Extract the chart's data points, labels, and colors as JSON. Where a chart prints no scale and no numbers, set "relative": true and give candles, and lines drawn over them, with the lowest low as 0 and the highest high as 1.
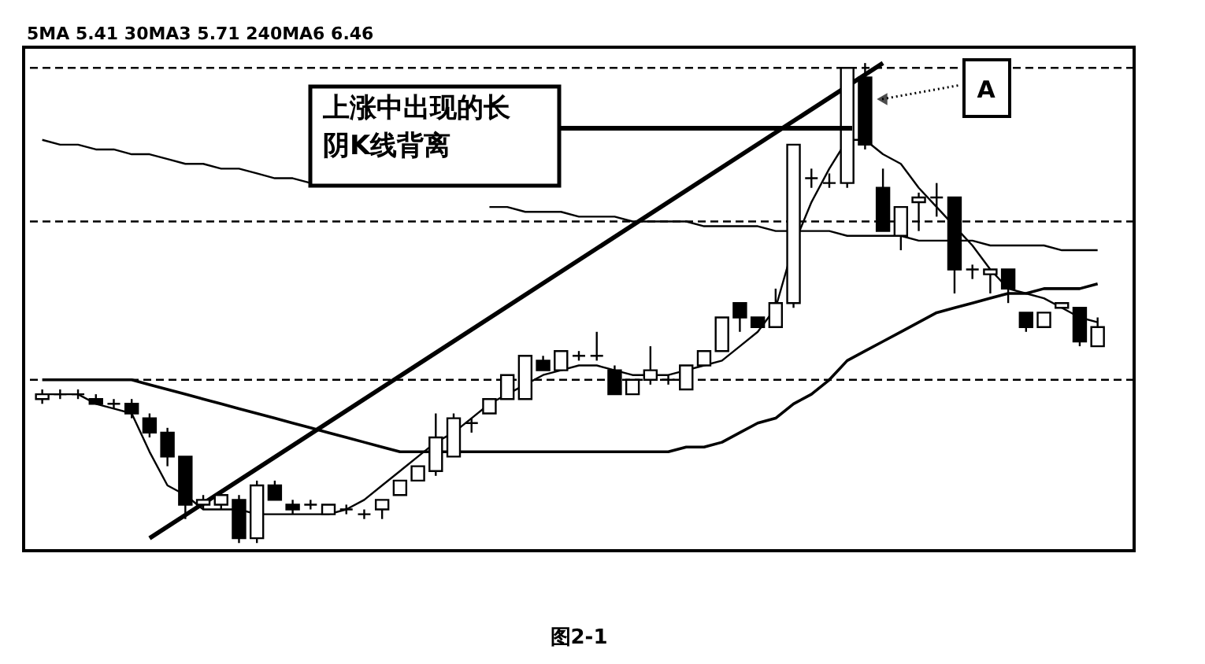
{
  "chart_data": {
    "type": "candlestick",
    "relative": true,
    "title": "图2-1",
    "categories": [
      null,
      null,
      null,
      null,
      null,
      null,
      null,
      null,
      null,
      null,
      null,
      null,
      null,
      null,
      null,
      null,
      null,
      null,
      null,
      null,
      null,
      null,
      null,
      null,
      null,
      null,
      null,
      null,
      null,
      null,
      null,
      null,
      null,
      null,
      null,
      null,
      null,
      null,
      null,
      null,
      null,
      null,
      null,
      null,
      null,
      null,
      null,
      null,
      null,
      null,
      null,
      null,
      null,
      null,
      null,
      null,
      null,
      null,
      null,
      null
    ],
    "ohlc": [
      [
        0.3,
        0.32,
        0.29,
        0.31
      ],
      [
        0.31,
        0.32,
        0.3,
        0.31
      ],
      [
        0.31,
        0.32,
        0.3,
        0.31
      ],
      [
        0.3,
        0.31,
        0.29,
        0.29
      ],
      [
        0.29,
        0.3,
        0.28,
        0.29
      ],
      [
        0.29,
        0.3,
        0.26,
        0.27
      ],
      [
        0.26,
        0.27,
        0.22,
        0.23
      ],
      [
        0.23,
        0.24,
        0.16,
        0.18
      ],
      [
        0.18,
        0.18,
        0.05,
        0.08
      ],
      [
        0.08,
        0.1,
        0.07,
        0.09
      ],
      [
        0.08,
        0.11,
        0.07,
        0.1
      ],
      [
        0.09,
        0.1,
        0.0,
        0.01
      ],
      [
        0.01,
        0.13,
        0.0,
        0.12
      ],
      [
        0.12,
        0.13,
        0.09,
        0.09
      ],
      [
        0.08,
        0.09,
        0.06,
        0.07
      ],
      [
        0.08,
        0.09,
        0.07,
        0.08
      ],
      [
        0.06,
        0.08,
        0.06,
        0.08
      ],
      [
        0.07,
        0.08,
        0.06,
        0.07
      ],
      [
        0.06,
        0.07,
        0.05,
        0.06
      ],
      [
        0.07,
        0.09,
        0.05,
        0.09
      ],
      [
        0.1,
        0.13,
        0.1,
        0.13
      ],
      [
        0.13,
        0.16,
        0.13,
        0.16
      ],
      [
        0.15,
        0.27,
        0.14,
        0.22
      ],
      [
        0.18,
        0.27,
        0.18,
        0.26
      ],
      [
        0.25,
        0.26,
        0.23,
        0.25
      ],
      [
        0.27,
        0.3,
        0.27,
        0.3
      ],
      [
        0.3,
        0.35,
        0.3,
        0.35
      ],
      [
        0.3,
        0.39,
        0.3,
        0.39
      ],
      [
        0.38,
        0.39,
        0.36,
        0.36
      ],
      [
        0.36,
        0.4,
        0.36,
        0.4
      ],
      [
        0.39,
        0.4,
        0.38,
        0.39
      ],
      [
        0.39,
        0.44,
        0.38,
        0.39
      ],
      [
        0.36,
        0.37,
        0.31,
        0.31
      ],
      [
        0.31,
        0.34,
        0.31,
        0.34
      ],
      [
        0.34,
        0.41,
        0.33,
        0.36
      ],
      [
        0.34,
        0.35,
        0.33,
        0.34
      ],
      [
        0.32,
        0.37,
        0.32,
        0.37
      ],
      [
        0.37,
        0.4,
        0.37,
        0.4
      ],
      [
        0.4,
        0.47,
        0.4,
        0.47
      ],
      [
        0.5,
        0.5,
        0.44,
        0.47
      ],
      [
        0.47,
        0.47,
        0.45,
        0.45
      ],
      [
        0.45,
        0.53,
        0.45,
        0.5
      ],
      [
        0.5,
        0.83,
        0.49,
        0.83
      ],
      [
        0.76,
        0.78,
        0.74,
        0.76
      ],
      [
        0.75,
        0.77,
        0.74,
        0.75
      ],
      [
        0.75,
        0.99,
        0.74,
        0.99
      ],
      [
        0.97,
        1.0,
        0.82,
        0.83
      ],
      [
        0.74,
        0.78,
        0.65,
        0.65
      ],
      [
        0.64,
        0.7,
        0.61,
        0.7
      ],
      [
        0.71,
        0.73,
        0.65,
        0.72
      ],
      [
        0.72,
        0.75,
        0.68,
        0.72
      ],
      [
        0.72,
        0.72,
        0.52,
        0.57
      ],
      [
        0.57,
        0.58,
        0.55,
        0.57
      ],
      [
        0.56,
        0.57,
        0.52,
        0.57
      ],
      [
        0.57,
        0.57,
        0.5,
        0.53
      ],
      [
        0.48,
        0.48,
        0.44,
        0.45
      ],
      [
        0.45,
        0.48,
        0.45,
        0.48
      ],
      [
        0.49,
        0.5,
        0.49,
        0.5
      ],
      [
        0.49,
        0.49,
        0.41,
        0.42
      ],
      [
        0.41,
        0.47,
        0.41,
        0.45
      ]
    ],
    "series": [
      {
        "type": "line",
        "color": "#000000",
        "values": [
          0.31,
          0.31,
          0.31,
          0.29,
          0.28,
          0.27,
          0.19,
          0.12,
          0.1,
          0.07,
          0.07,
          0.07,
          0.06,
          0.06,
          0.06,
          0.06,
          0.06,
          0.07,
          0.09,
          0.12,
          0.15,
          0.18,
          0.21,
          0.23,
          0.26,
          0.29,
          0.31,
          0.33,
          0.35,
          0.36,
          0.37,
          0.37,
          0.36,
          0.35,
          0.35,
          0.35,
          0.36,
          0.37,
          0.38,
          0.41,
          0.44,
          0.49,
          0.62,
          0.71,
          0.78,
          0.84,
          0.84,
          0.81,
          0.79,
          0.74,
          0.7,
          0.66,
          0.62,
          0.57,
          0.53,
          0.52,
          0.51,
          0.49,
          0.47,
          0.46
        ]
      },
      {
        "type": "line",
        "color": "#000000",
        "values": [
          0.34,
          0.34,
          0.34,
          0.34,
          0.34,
          0.34,
          0.33,
          0.32,
          0.31,
          0.3,
          0.29,
          0.28,
          0.27,
          0.26,
          0.25,
          0.24,
          0.23,
          0.22,
          0.21,
          0.2,
          0.19,
          0.19,
          0.19,
          0.19,
          0.19,
          0.19,
          0.19,
          0.19,
          0.19,
          0.19,
          0.19,
          0.19,
          0.19,
          0.19,
          0.19,
          0.19,
          0.2,
          0.2,
          0.21,
          0.23,
          0.25,
          0.26,
          0.29,
          0.31,
          0.34,
          0.38,
          0.4,
          0.42,
          0.44,
          0.46,
          0.48,
          0.49,
          0.5,
          0.51,
          0.52,
          0.52,
          0.53,
          0.53,
          0.53,
          0.54
        ]
      },
      {
        "type": "line",
        "color": "#000000",
        "values": [
          0.84,
          0.83,
          0.83,
          0.82,
          0.82,
          0.81,
          0.81,
          0.8,
          0.79,
          0.79,
          0.78,
          0.78,
          0.77,
          0.76,
          0.76,
          0.75,
          null,
          null,
          null,
          null,
          null,
          null,
          null,
          null,
          null,
          0.7,
          0.7,
          0.69,
          0.69,
          0.69,
          0.68,
          0.68,
          0.68,
          0.67,
          0.67,
          0.67,
          0.67,
          0.66,
          0.66,
          0.66,
          0.66,
          0.65,
          0.65,
          0.65,
          0.65,
          0.64,
          0.64,
          0.64,
          0.64,
          0.63,
          0.63,
          0.63,
          0.63,
          0.62,
          0.62,
          0.62,
          0.62,
          0.61,
          0.61,
          0.61
        ]
      },
      {
        "type": "line",
        "color": "#000000",
        "values": [
          null,
          null,
          null,
          null,
          null,
          null,
          0.01,
          null,
          null,
          null,
          null,
          null,
          null,
          null,
          null,
          null,
          null,
          null,
          null,
          null,
          null,
          null,
          null,
          null,
          null,
          null,
          null,
          null,
          null,
          null,
          null,
          null,
          null,
          null,
          null,
          null,
          null,
          null,
          null,
          null,
          null,
          null,
          null,
          null,
          null,
          null,
          null,
          1.0,
          null,
          null,
          null,
          null,
          null,
          null,
          null,
          null,
          null,
          null,
          null,
          null
        ]
      }
    ],
    "ref_lines": [
      {
        "axis": "y",
        "value": 0.99,
        "line_style": "dashed"
      },
      {
        "axis": "y",
        "value": 0.67,
        "line_style": "dashed"
      },
      {
        "axis": "y",
        "value": 0.34,
        "line_style": "dashed"
      }
    ],
    "annotations": [
      "上涨中出现的长阴K线背离",
      "A",
      "5MA 5.41  30MA3 5.71  240MA6 6.46"
    ]
  }
}
